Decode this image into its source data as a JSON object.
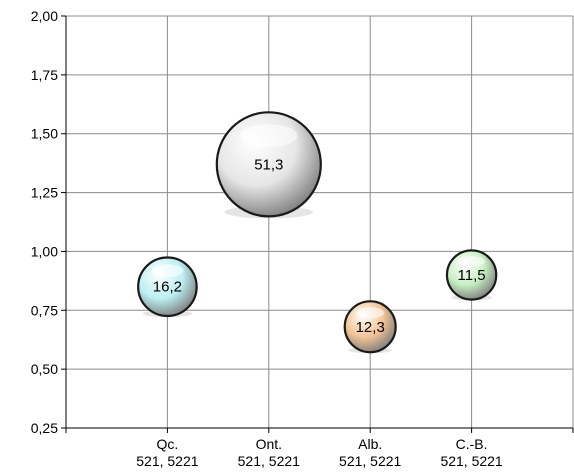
{
  "chart_data": {
    "type": "bubble",
    "title": "",
    "xlabel": "",
    "ylabel": "",
    "ylim": [
      0.25,
      2.0
    ],
    "yticks": [
      "0,25",
      "0,50",
      "0,75",
      "1,00",
      "1,25",
      "1,50",
      "1,75",
      "2,00"
    ],
    "grid": true,
    "legend": "none",
    "categories": [
      {
        "line1": "Qc.",
        "line2": "521, 5221"
      },
      {
        "line1": "Ont.",
        "line2": "521, 5221"
      },
      {
        "line1": "Alb.",
        "line2": "521, 5221"
      },
      {
        "line1": "C.-B.",
        "line2": "521, 5221"
      }
    ],
    "points": [
      {
        "category_index": 0,
        "y": 0.85,
        "size": 16.2,
        "label": "16,2",
        "color": "#bdeff2"
      },
      {
        "category_index": 1,
        "y": 1.37,
        "size": 51.3,
        "label": "51,3",
        "color": "#e6e6e6"
      },
      {
        "category_index": 2,
        "y": 0.68,
        "size": 12.3,
        "label": "12,3",
        "color": "#f3c496"
      },
      {
        "category_index": 3,
        "y": 0.9,
        "size": 11.5,
        "label": "11,5",
        "color": "#c7efc2"
      }
    ]
  }
}
